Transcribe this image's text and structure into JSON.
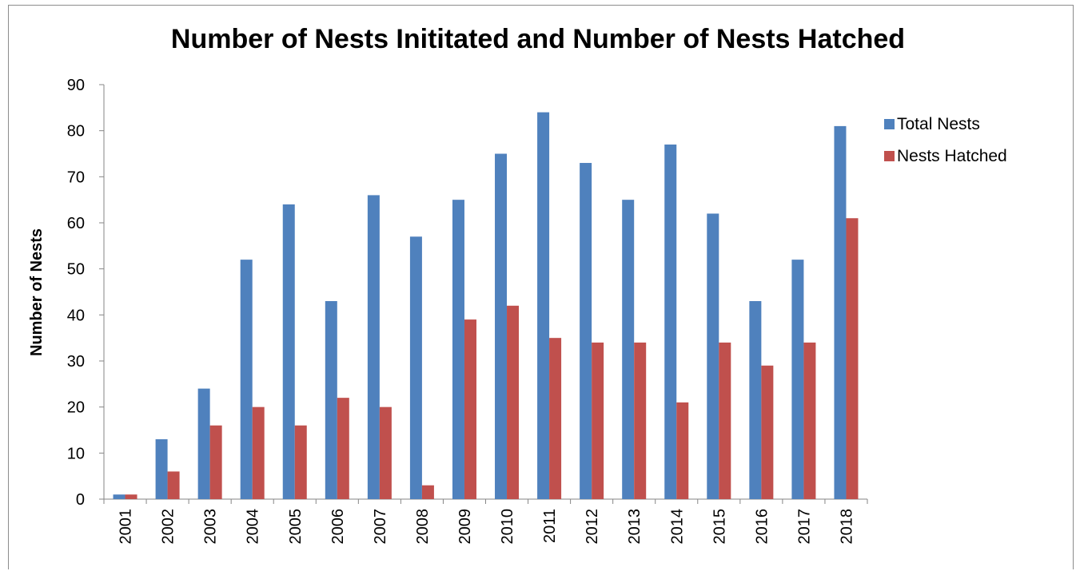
{
  "chart_data": {
    "type": "bar",
    "title": "Number of Nests Inititated and Number of Nests Hatched",
    "xlabel": "",
    "ylabel": "Number of Nests",
    "ylim": [
      0,
      90
    ],
    "yticks": [
      "0",
      "10",
      "20",
      "30",
      "40",
      "50",
      "60",
      "70",
      "80",
      "90"
    ],
    "categories": [
      "2001",
      "2002",
      "2003",
      "2004",
      "2005",
      "2006",
      "2007",
      "2008",
      "2009",
      "2010",
      "2011",
      "2012",
      "2013",
      "2014",
      "2015",
      "2016",
      "2017",
      "2018"
    ],
    "series": [
      {
        "name": "Total Nests",
        "color": "#4f81bd",
        "values": [
          1,
          13,
          24,
          52,
          64,
          43,
          66,
          57,
          65,
          75,
          84,
          73,
          65,
          77,
          62,
          43,
          52,
          81
        ]
      },
      {
        "name": "Nests Hatched",
        "color": "#c0504d",
        "values": [
          1,
          6,
          16,
          20,
          16,
          22,
          20,
          3,
          39,
          42,
          35,
          34,
          34,
          21,
          34,
          29,
          34,
          61
        ]
      }
    ],
    "grid": false,
    "legend_position": "right"
  }
}
